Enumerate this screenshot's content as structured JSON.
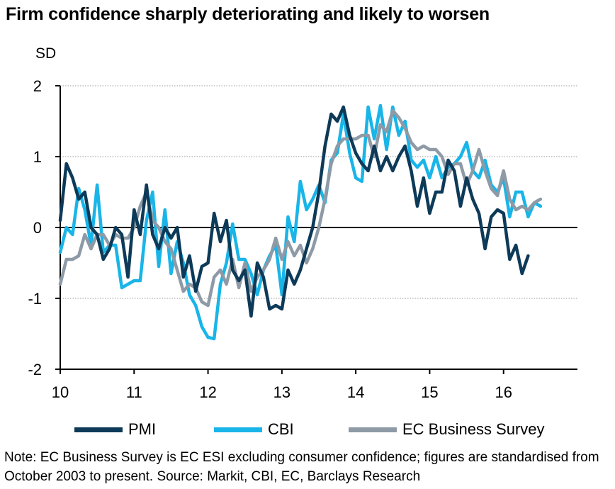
{
  "title": "Firm confidence sharply deteriorating and likely to worsen",
  "note": "Note: EC Business Survey is EC ESI excluding consumer confidence; figures are standardised from October 2003 to present. Source: Markit, CBI, EC, Barclays Research",
  "chart_data": {
    "type": "line",
    "title": "Firm confidence sharply deteriorating and likely to worsen",
    "ylabel": "SD",
    "xlabel": "",
    "xlim": [
      2010,
      2017
    ],
    "ylim": [
      -2,
      2
    ],
    "x_ticks": [
      {
        "value": 2010,
        "label": "10"
      },
      {
        "value": 2011,
        "label": "11"
      },
      {
        "value": 2012,
        "label": "12"
      },
      {
        "value": 2013,
        "label": "13"
      },
      {
        "value": 2014,
        "label": "14"
      },
      {
        "value": 2015,
        "label": "15"
      },
      {
        "value": 2016,
        "label": "16"
      }
    ],
    "y_ticks": [
      {
        "value": 2,
        "label": "2"
      },
      {
        "value": 1,
        "label": "1"
      },
      {
        "value": 0,
        "label": "0"
      },
      {
        "value": -1,
        "label": "-1"
      },
      {
        "value": -2,
        "label": "-2"
      }
    ],
    "grid": true,
    "legend_position": "bottom",
    "series": [
      {
        "name": "PMI",
        "color": "#0d3a58",
        "points": [
          [
            2010.0,
            0.1
          ],
          [
            2010.083,
            0.9
          ],
          [
            2010.167,
            0.7
          ],
          [
            2010.25,
            0.4
          ],
          [
            2010.333,
            0.5
          ],
          [
            2010.417,
            0.0
          ],
          [
            2010.5,
            -0.1
          ],
          [
            2010.583,
            -0.45
          ],
          [
            2010.667,
            -0.3
          ],
          [
            2010.75,
            0.0
          ],
          [
            2010.833,
            -0.1
          ],
          [
            2010.917,
            -0.7
          ],
          [
            2011.0,
            0.25
          ],
          [
            2011.083,
            -0.1
          ],
          [
            2011.167,
            0.6
          ],
          [
            2011.25,
            -0.1
          ],
          [
            2011.333,
            -0.3
          ],
          [
            2011.417,
            0.0
          ],
          [
            2011.5,
            -0.15
          ],
          [
            2011.583,
            0.0
          ],
          [
            2011.667,
            -0.7
          ],
          [
            2011.75,
            -0.4
          ],
          [
            2011.833,
            -0.9
          ],
          [
            2011.917,
            -0.55
          ],
          [
            2012.0,
            -0.5
          ],
          [
            2012.083,
            0.2
          ],
          [
            2012.167,
            -0.2
          ],
          [
            2012.25,
            0.1
          ],
          [
            2012.333,
            -0.6
          ],
          [
            2012.417,
            -0.75
          ],
          [
            2012.5,
            -0.6
          ],
          [
            2012.583,
            -1.25
          ],
          [
            2012.667,
            -0.5
          ],
          [
            2012.75,
            -0.7
          ],
          [
            2012.833,
            -1.15
          ],
          [
            2012.917,
            -1.1
          ],
          [
            2013.0,
            -1.15
          ],
          [
            2013.083,
            -0.6
          ],
          [
            2013.167,
            -0.8
          ],
          [
            2013.25,
            -0.6
          ],
          [
            2013.333,
            -0.3
          ],
          [
            2013.417,
            0.0
          ],
          [
            2013.5,
            0.5
          ],
          [
            2013.583,
            1.15
          ],
          [
            2013.667,
            1.6
          ],
          [
            2013.75,
            1.5
          ],
          [
            2013.833,
            1.7
          ],
          [
            2013.917,
            1.3
          ],
          [
            2014.0,
            1.05
          ],
          [
            2014.083,
            0.9
          ],
          [
            2014.167,
            0.8
          ],
          [
            2014.25,
            1.15
          ],
          [
            2014.333,
            0.8
          ],
          [
            2014.417,
            1.0
          ],
          [
            2014.5,
            0.8
          ],
          [
            2014.583,
            1.0
          ],
          [
            2014.667,
            1.15
          ],
          [
            2014.75,
            0.8
          ],
          [
            2014.833,
            0.3
          ],
          [
            2014.917,
            0.7
          ],
          [
            2015.0,
            0.2
          ],
          [
            2015.083,
            0.5
          ],
          [
            2015.167,
            0.5
          ],
          [
            2015.25,
            0.95
          ],
          [
            2015.333,
            0.8
          ],
          [
            2015.417,
            0.3
          ],
          [
            2015.5,
            0.7
          ],
          [
            2015.583,
            0.4
          ],
          [
            2015.667,
            0.2
          ],
          [
            2015.75,
            -0.3
          ],
          [
            2015.833,
            0.15
          ],
          [
            2015.917,
            0.25
          ],
          [
            2016.0,
            0.2
          ],
          [
            2016.083,
            -0.45
          ],
          [
            2016.167,
            -0.25
          ],
          [
            2016.25,
            -0.65
          ],
          [
            2016.333,
            -0.4
          ]
        ]
      },
      {
        "name": "CBI",
        "color": "#19b5e8",
        "points": [
          [
            2010.0,
            -0.35
          ],
          [
            2010.083,
            0.0
          ],
          [
            2010.167,
            -0.1
          ],
          [
            2010.25,
            0.55
          ],
          [
            2010.333,
            0.25
          ],
          [
            2010.417,
            -0.25
          ],
          [
            2010.5,
            0.6
          ],
          [
            2010.583,
            -0.35
          ],
          [
            2010.667,
            -0.25
          ],
          [
            2010.75,
            -0.25
          ],
          [
            2010.833,
            -0.85
          ],
          [
            2010.917,
            -0.8
          ],
          [
            2011.0,
            -0.75
          ],
          [
            2011.083,
            -0.75
          ],
          [
            2011.167,
            0.1
          ],
          [
            2011.25,
            0.5
          ],
          [
            2011.333,
            -0.55
          ],
          [
            2011.417,
            0.25
          ],
          [
            2011.5,
            -0.65
          ],
          [
            2011.583,
            -0.2
          ],
          [
            2011.667,
            -0.5
          ],
          [
            2011.75,
            -0.95
          ],
          [
            2011.833,
            -1.1
          ],
          [
            2011.917,
            -1.4
          ],
          [
            2012.0,
            -1.55
          ],
          [
            2012.083,
            -1.57
          ],
          [
            2012.167,
            -0.8
          ],
          [
            2012.25,
            -0.5
          ],
          [
            2012.333,
            0.05
          ],
          [
            2012.417,
            -0.45
          ],
          [
            2012.5,
            -0.45
          ],
          [
            2012.583,
            -0.65
          ],
          [
            2012.667,
            -0.95
          ],
          [
            2012.75,
            -0.6
          ],
          [
            2012.833,
            -0.4
          ],
          [
            2012.917,
            -0.25
          ],
          [
            2013.0,
            -0.95
          ],
          [
            2013.083,
            0.15
          ],
          [
            2013.167,
            -0.2
          ],
          [
            2013.25,
            0.65
          ],
          [
            2013.333,
            0.25
          ],
          [
            2013.417,
            0.4
          ],
          [
            2013.5,
            0.6
          ],
          [
            2013.583,
            0.35
          ],
          [
            2013.667,
            0.95
          ],
          [
            2013.75,
            1.05
          ],
          [
            2013.833,
            1.6
          ],
          [
            2013.917,
            1.05
          ],
          [
            2014.0,
            0.7
          ],
          [
            2014.083,
            0.65
          ],
          [
            2014.167,
            1.7
          ],
          [
            2014.25,
            1.25
          ],
          [
            2014.333,
            1.72
          ],
          [
            2014.417,
            1.1
          ],
          [
            2014.5,
            1.7
          ],
          [
            2014.583,
            1.3
          ],
          [
            2014.667,
            1.5
          ],
          [
            2014.75,
            0.95
          ],
          [
            2014.833,
            0.85
          ],
          [
            2014.917,
            0.95
          ],
          [
            2015.0,
            0.7
          ],
          [
            2015.083,
            1.0
          ],
          [
            2015.167,
            0.7
          ],
          [
            2015.25,
            0.85
          ],
          [
            2015.333,
            0.9
          ],
          [
            2015.417,
            1.0
          ],
          [
            2015.5,
            1.2
          ],
          [
            2015.583,
            0.8
          ],
          [
            2015.667,
            0.7
          ],
          [
            2015.75,
            0.95
          ],
          [
            2015.833,
            0.6
          ],
          [
            2015.917,
            0.5
          ],
          [
            2016.0,
            0.7
          ],
          [
            2016.083,
            0.15
          ],
          [
            2016.167,
            0.5
          ],
          [
            2016.25,
            0.5
          ],
          [
            2016.333,
            0.15
          ],
          [
            2016.417,
            0.35
          ],
          [
            2016.5,
            0.3
          ]
        ]
      },
      {
        "name": "EC Business Survey",
        "color": "#8e9aa6",
        "points": [
          [
            2010.0,
            -0.8
          ],
          [
            2010.083,
            -0.45
          ],
          [
            2010.167,
            -0.45
          ],
          [
            2010.25,
            -0.4
          ],
          [
            2010.333,
            -0.1
          ],
          [
            2010.417,
            -0.3
          ],
          [
            2010.5,
            -0.1
          ],
          [
            2010.583,
            -0.1
          ],
          [
            2010.667,
            -0.25
          ],
          [
            2010.75,
            -0.1
          ],
          [
            2010.833,
            -0.15
          ],
          [
            2010.917,
            -0.15
          ],
          [
            2011.0,
            0.0
          ],
          [
            2011.083,
            0.3
          ],
          [
            2011.167,
            0.5
          ],
          [
            2011.25,
            0.1
          ],
          [
            2011.333,
            0.0
          ],
          [
            2011.417,
            -0.2
          ],
          [
            2011.5,
            -0.3
          ],
          [
            2011.583,
            -0.6
          ],
          [
            2011.667,
            -0.9
          ],
          [
            2011.75,
            -0.8
          ],
          [
            2011.833,
            -0.85
          ],
          [
            2011.917,
            -1.05
          ],
          [
            2012.0,
            -1.1
          ],
          [
            2012.083,
            -0.7
          ],
          [
            2012.167,
            -0.6
          ],
          [
            2012.25,
            -0.8
          ],
          [
            2012.333,
            -0.45
          ],
          [
            2012.417,
            -0.85
          ],
          [
            2012.5,
            -0.5
          ],
          [
            2012.583,
            -0.9
          ],
          [
            2012.667,
            -0.7
          ],
          [
            2012.75,
            -0.6
          ],
          [
            2012.833,
            -0.45
          ],
          [
            2012.917,
            -0.15
          ],
          [
            2013.0,
            -0.45
          ],
          [
            2013.083,
            -0.2
          ],
          [
            2013.167,
            -0.4
          ],
          [
            2013.25,
            -0.25
          ],
          [
            2013.333,
            -0.5
          ],
          [
            2013.417,
            -0.3
          ],
          [
            2013.5,
            0.0
          ],
          [
            2013.583,
            0.4
          ],
          [
            2013.667,
            0.9
          ],
          [
            2013.75,
            1.15
          ],
          [
            2013.833,
            1.25
          ],
          [
            2013.917,
            1.25
          ],
          [
            2014.0,
            1.25
          ],
          [
            2014.083,
            1.3
          ],
          [
            2014.167,
            1.3
          ],
          [
            2014.25,
            1.0
          ],
          [
            2014.333,
            1.45
          ],
          [
            2014.417,
            1.35
          ],
          [
            2014.5,
            1.65
          ],
          [
            2014.583,
            1.55
          ],
          [
            2014.667,
            1.4
          ],
          [
            2014.75,
            1.2
          ],
          [
            2014.833,
            1.1
          ],
          [
            2014.917,
            1.15
          ],
          [
            2015.0,
            1.1
          ],
          [
            2015.083,
            1.1
          ],
          [
            2015.167,
            1.0
          ],
          [
            2015.25,
            0.75
          ],
          [
            2015.333,
            0.9
          ],
          [
            2015.417,
            0.9
          ],
          [
            2015.5,
            0.6
          ],
          [
            2015.583,
            0.8
          ],
          [
            2015.667,
            1.1
          ],
          [
            2015.75,
            0.8
          ],
          [
            2015.833,
            0.55
          ],
          [
            2015.917,
            0.45
          ],
          [
            2016.0,
            0.8
          ],
          [
            2016.083,
            0.4
          ],
          [
            2016.167,
            0.25
          ],
          [
            2016.25,
            0.3
          ],
          [
            2016.333,
            0.25
          ],
          [
            2016.417,
            0.35
          ],
          [
            2016.5,
            0.4
          ]
        ]
      }
    ]
  }
}
